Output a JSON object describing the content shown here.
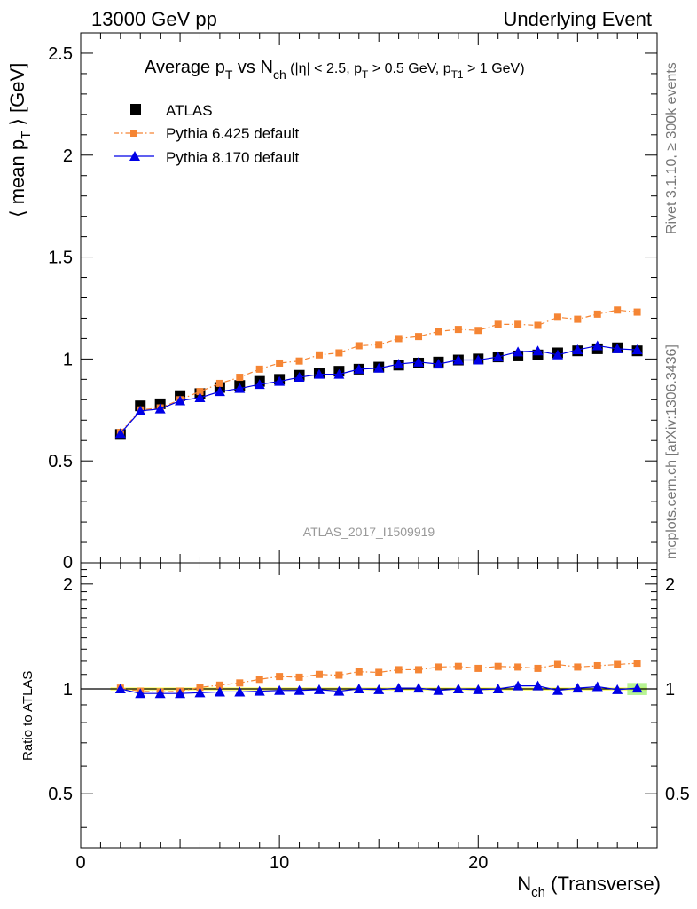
{
  "header": {
    "energy": "13000 GeV pp",
    "category": "Underlying Event"
  },
  "side_labels": {
    "rivet": "Rivet 3.1.10, ≥ 300k events",
    "mcplots": "mcplots.cern.ch [arXiv:1306.3436]"
  },
  "analysis_label": "ATLAS_2017_I1509919",
  "chart_data": [
    {
      "type": "scatter",
      "panel": "main",
      "title": {
        "t1": "Average p",
        "s1": "T",
        "t2": " vs N",
        "s2": "ch",
        "t3": " (|η| < 2.5, p",
        "s3": "T",
        "t4": " > 0.5 GeV, p",
        "s4": "T1",
        "t5": " > 1 GeV)"
      },
      "ylabel": {
        "pre": "⟨ mean p",
        "sub": "T",
        "post": " ⟩ [GeV]"
      },
      "xlim": [
        0,
        29
      ],
      "ylim": [
        0,
        2.6
      ],
      "yticks": [
        {
          "v": 0.5,
          "label": "0.5"
        },
        {
          "v": 1,
          "label": "1"
        },
        {
          "v": 1.5,
          "label": "1.5"
        },
        {
          "v": 2,
          "label": "2"
        },
        {
          "v": 2.5,
          "label": "2.5"
        }
      ],
      "y_zero_label": "0",
      "x": [
        2,
        3,
        4,
        5,
        6,
        7,
        8,
        9,
        10,
        11,
        12,
        13,
        14,
        15,
        16,
        17,
        18,
        19,
        20,
        21,
        22,
        23,
        24,
        25,
        26,
        27,
        28
      ],
      "series": [
        {
          "name": "ATLAS",
          "color": "#000000",
          "marker": "square",
          "line": "none",
          "values": [
            0.63,
            0.77,
            0.78,
            0.82,
            0.83,
            0.86,
            0.87,
            0.89,
            0.9,
            0.92,
            0.93,
            0.94,
            0.95,
            0.96,
            0.97,
            0.98,
            0.985,
            0.995,
            1.0,
            1.01,
            1.015,
            1.02,
            1.03,
            1.04,
            1.05,
            1.055,
            1.04
          ]
        },
        {
          "name": "Pythia 6.425 default",
          "color": "#f58534",
          "marker": "small-square",
          "line": "dash-dot",
          "values": [
            0.64,
            0.75,
            0.76,
            0.8,
            0.84,
            0.88,
            0.91,
            0.95,
            0.98,
            0.99,
            1.02,
            1.03,
            1.065,
            1.07,
            1.1,
            1.11,
            1.135,
            1.145,
            1.14,
            1.17,
            1.17,
            1.165,
            1.205,
            1.195,
            1.22,
            1.24,
            1.23
          ]
        },
        {
          "name": "Pythia 8.170 default",
          "color": "#0000e6",
          "marker": "triangle",
          "line": "solid",
          "values": [
            0.635,
            0.745,
            0.755,
            0.795,
            0.81,
            0.84,
            0.855,
            0.875,
            0.89,
            0.91,
            0.925,
            0.925,
            0.95,
            0.955,
            0.975,
            0.985,
            0.975,
            0.995,
            0.995,
            1.01,
            1.035,
            1.04,
            1.02,
            1.045,
            1.065,
            1.05,
            1.045
          ]
        }
      ]
    },
    {
      "type": "scatter",
      "panel": "ratio",
      "ylabel": "Ratio to ATLAS",
      "xlabel": {
        "pre": "N",
        "sub": "ch",
        "post": " (Transverse)"
      },
      "xlim": [
        0,
        29
      ],
      "ylim": [
        0.35,
        2.3
      ],
      "xticks": [
        {
          "v": 0,
          "label": "0"
        },
        {
          "v": 10,
          "label": "10"
        },
        {
          "v": 20,
          "label": "20"
        }
      ],
      "yticks": [
        {
          "v": 0.5,
          "label": "0.5"
        },
        {
          "v": 1,
          "label": "1"
        },
        {
          "v": 2,
          "label": "2"
        }
      ],
      "x": [
        2,
        3,
        4,
        5,
        6,
        7,
        8,
        9,
        10,
        11,
        12,
        13,
        14,
        15,
        16,
        17,
        18,
        19,
        20,
        21,
        22,
        23,
        24,
        25,
        26,
        27,
        28
      ],
      "band_color": "#ffff66",
      "band_edge_color": "#99ee66",
      "series": [
        {
          "name": "Pythia 6.425 default",
          "color": "#f58534",
          "marker": "small-square",
          "line": "dash-dot",
          "values": [
            1.005,
            0.985,
            0.98,
            0.985,
            1.01,
            1.025,
            1.04,
            1.065,
            1.085,
            1.08,
            1.1,
            1.095,
            1.12,
            1.115,
            1.135,
            1.135,
            1.155,
            1.16,
            1.145,
            1.16,
            1.155,
            1.145,
            1.175,
            1.155,
            1.165,
            1.175,
            1.185
          ]
        },
        {
          "name": "Pythia 8.170 default",
          "color": "#0000e6",
          "marker": "triangle",
          "line": "solid",
          "values": [
            1.0,
            0.97,
            0.97,
            0.97,
            0.975,
            0.98,
            0.98,
            0.985,
            0.99,
            0.99,
            0.995,
            0.985,
            1.0,
            0.995,
            1.005,
            1.005,
            0.99,
            1.0,
            0.995,
            1.0,
            1.02,
            1.02,
            0.99,
            1.005,
            1.015,
            0.995,
            1.005
          ]
        }
      ]
    }
  ]
}
